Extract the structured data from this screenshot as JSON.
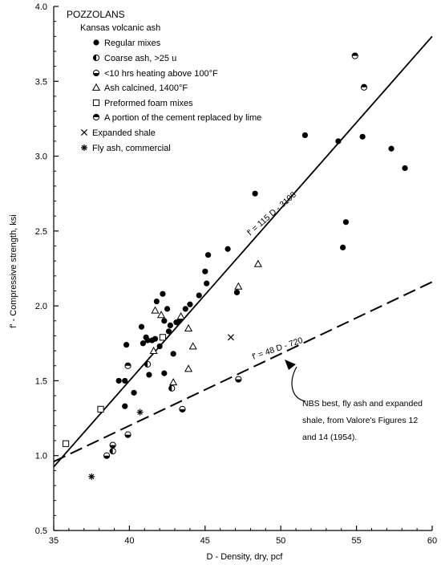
{
  "chart_data": {
    "type": "scatter",
    "title": "POZZOLANS",
    "xlabel": "D - Density, dry, pcf",
    "ylabel": "f' - Compressive strength, ksi",
    "xlim": [
      35,
      60
    ],
    "ylim": [
      0.5,
      4.0
    ],
    "x_ticks": [
      "35",
      "40",
      "45",
      "50",
      "55",
      "60"
    ],
    "y_ticks": [
      "0.5",
      "1.0",
      "1.5",
      "2.0",
      "2.5",
      "3.0",
      "3.5",
      "4.0"
    ],
    "grid": false,
    "legend_heading": "Kansas volcanic ash",
    "legend": [
      {
        "label": "Regular mixes",
        "marker": "filled-circle"
      },
      {
        "label": "Coarse ash, >25 u",
        "marker": "half-left-circle"
      },
      {
        "label": "<10 hrs heating above 100°F",
        "marker": "half-bottom-circle"
      },
      {
        "label": "Ash calcined, 1400°F",
        "marker": "open-triangle"
      },
      {
        "label": "Preformed foam mixes",
        "marker": "open-square"
      },
      {
        "label": "A portion of the cement replaced by lime",
        "marker": "half-top-circle"
      },
      {
        "label": "Expanded shale",
        "marker": "x"
      },
      {
        "label": "Fly ash, commercial",
        "marker": "asterisk"
      }
    ],
    "series": [
      {
        "name": "Regular mixes",
        "marker": "filled-circle",
        "points": [
          [
            39.3,
            1.5
          ],
          [
            39.7,
            1.5
          ],
          [
            39.8,
            1.74
          ],
          [
            39.7,
            1.33
          ],
          [
            40.3,
            1.42
          ],
          [
            40.8,
            1.86
          ],
          [
            40.9,
            1.75
          ],
          [
            41.1,
            1.79
          ],
          [
            41.2,
            1.77
          ],
          [
            41.3,
            1.54
          ],
          [
            41.5,
            1.77
          ],
          [
            41.7,
            1.78
          ],
          [
            41.8,
            2.03
          ],
          [
            42.0,
            1.73
          ],
          [
            42.2,
            2.08
          ],
          [
            42.3,
            1.9
          ],
          [
            42.3,
            1.55
          ],
          [
            42.5,
            1.98
          ],
          [
            42.6,
            1.83
          ],
          [
            42.7,
            1.87
          ],
          [
            42.9,
            1.68
          ],
          [
            43.1,
            1.89
          ],
          [
            43.3,
            1.9
          ],
          [
            43.7,
            1.98
          ],
          [
            44.0,
            2.01
          ],
          [
            44.6,
            2.07
          ],
          [
            45.0,
            2.23
          ],
          [
            45.1,
            2.15
          ],
          [
            45.2,
            2.34
          ],
          [
            46.5,
            2.38
          ],
          [
            47.1,
            2.09
          ],
          [
            48.3,
            2.75
          ],
          [
            51.6,
            3.14
          ],
          [
            53.8,
            3.1
          ],
          [
            54.1,
            2.39
          ],
          [
            54.3,
            2.56
          ],
          [
            55.4,
            3.13
          ],
          [
            57.3,
            3.05
          ],
          [
            58.2,
            2.92
          ]
        ]
      },
      {
        "name": "Coarse ash, >25 u",
        "marker": "half-left-circle",
        "points": [
          [
            38.9,
            1.03
          ],
          [
            41.2,
            1.61
          ],
          [
            42.8,
            1.45
          ]
        ]
      },
      {
        "name": "<10 hrs heating above 100°F",
        "marker": "half-bottom-circle",
        "points": [
          [
            38.5,
            1.0
          ],
          [
            38.9,
            1.07
          ],
          [
            39.9,
            1.14
          ],
          [
            43.5,
            1.31
          ],
          [
            47.2,
            1.51
          ]
        ]
      },
      {
        "name": "Ash calcined, 1400°F",
        "marker": "open-triangle",
        "points": [
          [
            41.7,
            1.97
          ],
          [
            42.1,
            1.94
          ],
          [
            43.4,
            1.93
          ],
          [
            43.9,
            1.85
          ],
          [
            44.2,
            1.73
          ],
          [
            43.9,
            1.58
          ],
          [
            42.9,
            1.49
          ],
          [
            41.6,
            1.7
          ],
          [
            48.5,
            2.28
          ],
          [
            47.2,
            2.13
          ]
        ]
      },
      {
        "name": "Preformed foam mixes",
        "marker": "open-square",
        "points": [
          [
            35.8,
            1.08
          ],
          [
            38.1,
            1.31
          ],
          [
            42.2,
            1.79
          ]
        ]
      },
      {
        "name": "A portion of the cement replaced by lime",
        "marker": "half-top-circle",
        "points": [
          [
            39.9,
            1.6
          ],
          [
            54.9,
            3.67
          ],
          [
            55.5,
            3.46
          ]
        ]
      },
      {
        "name": "Expanded shale",
        "marker": "x",
        "points": [
          [
            46.7,
            1.79
          ]
        ]
      },
      {
        "name": "Fly ash, commercial",
        "marker": "asterisk",
        "points": [
          [
            37.5,
            0.86
          ],
          [
            40.7,
            1.29
          ]
        ]
      }
    ],
    "lines": [
      {
        "label": "f' = 115 D - 3100",
        "style": "solid",
        "x": [
          35,
          60
        ],
        "y": [
          0.925,
          3.8
        ]
      },
      {
        "label": "f' = 48 D - 720",
        "style": "dashed",
        "x": [
          35,
          60
        ],
        "y": [
          0.96,
          2.16
        ]
      }
    ],
    "annotation": {
      "lines": [
        "NBS best, fly ash and expanded",
        "shale, from Valore's Figures 12",
        "and 14 (1954)."
      ]
    }
  }
}
